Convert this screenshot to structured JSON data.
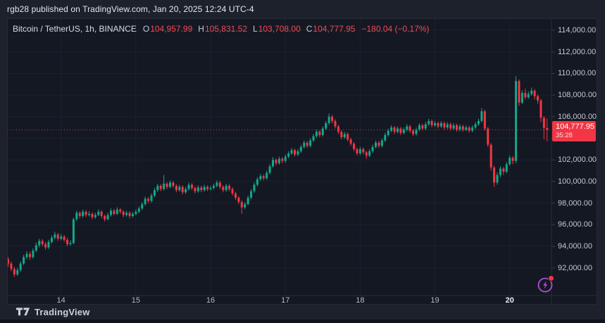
{
  "header": {
    "text": "rgb28 published on TradingView.com, Jan 20, 2025 12:24 UTC-4"
  },
  "legend": {
    "symbol": "Bitcoin / TetherUS, 1h, BINANCE",
    "ohlc": [
      {
        "label": "O",
        "value": "104,957.99"
      },
      {
        "label": "H",
        "value": "105,831.52"
      },
      {
        "label": "L",
        "value": "103,708.00"
      },
      {
        "label": "C",
        "value": "104,777.95"
      }
    ],
    "change": "−180.04 (−0.17%)"
  },
  "price_badge": {
    "price": "104,777.95",
    "countdown": "35:28"
  },
  "footer": {
    "brand": "TradingView"
  },
  "chart_data": {
    "type": "candlestick",
    "title": "Bitcoin / TetherUS",
    "exchange": "BINANCE",
    "interval": "1h",
    "current_price": 104777.95,
    "colors": {
      "up": "#12a88a",
      "down": "#f23645",
      "grid": "#21263322",
      "grid_line": "#232836",
      "axis_text": "#c3c7d1",
      "price_line": "#f23645",
      "badge_bg": "#f23645",
      "separator": "#262b37",
      "panel_bg": "#141823",
      "outer_bg": "#1d212c",
      "lightning": "#b14ed6"
    },
    "y_axis": {
      "side": "right",
      "range": [
        90500,
        114800
      ],
      "ticks": [
        {
          "value": 114000,
          "label": "114,000.00"
        },
        {
          "value": 112000,
          "label": "112,000.00"
        },
        {
          "value": 110000,
          "label": "110,000.00"
        },
        {
          "value": 108000,
          "label": "108,000.00"
        },
        {
          "value": 106000,
          "label": "106,000.00"
        },
        {
          "value": 104000,
          "label": "104,000.00",
          "hidden": true
        },
        {
          "value": 102000,
          "label": "102,000.00"
        },
        {
          "value": 100000,
          "label": "100,000.00"
        },
        {
          "value": 98000,
          "label": "98,000.00"
        },
        {
          "value": 96000,
          "label": "96,000.00"
        },
        {
          "value": 94000,
          "label": "94,000.00"
        },
        {
          "value": 92000,
          "label": "92,000.00"
        }
      ]
    },
    "x_axis": {
      "unit": "day of January 2025",
      "ticks": [
        {
          "label": "14",
          "candle": 17,
          "current": false
        },
        {
          "label": "15",
          "candle": 41,
          "current": false
        },
        {
          "label": "16",
          "candle": 65,
          "current": false
        },
        {
          "label": "17",
          "candle": 89,
          "current": false
        },
        {
          "label": "18",
          "candle": 113,
          "current": false
        },
        {
          "label": "19",
          "candle": 137,
          "current": false
        },
        {
          "label": "20",
          "candle": 161,
          "current": true
        }
      ]
    },
    "candles": [
      [
        92800,
        93000,
        92100,
        92400
      ],
      [
        92400,
        92600,
        91700,
        91900
      ],
      [
        91900,
        92100,
        91150,
        91400
      ],
      [
        91400,
        92000,
        91250,
        91800
      ],
      [
        91800,
        92600,
        91600,
        92400
      ],
      [
        92400,
        93200,
        92250,
        93000
      ],
      [
        93000,
        93550,
        92800,
        93300
      ],
      [
        93300,
        93500,
        92750,
        93000
      ],
      [
        93000,
        93800,
        92850,
        93600
      ],
      [
        93600,
        94350,
        93450,
        94100
      ],
      [
        94100,
        94700,
        93900,
        94500
      ],
      [
        94500,
        94650,
        94000,
        94200
      ],
      [
        94200,
        94400,
        93700,
        93900
      ],
      [
        93900,
        94600,
        93750,
        94400
      ],
      [
        94400,
        95000,
        94250,
        94800
      ],
      [
        94800,
        95350,
        94650,
        95100
      ],
      [
        95100,
        95250,
        94500,
        94700
      ],
      [
        94700,
        95150,
        94550,
        94900
      ],
      [
        94900,
        95050,
        94400,
        94600
      ],
      [
        94600,
        94800,
        94000,
        94200
      ],
      [
        94200,
        94550,
        94050,
        94300
      ],
      [
        94300,
        96650,
        94200,
        96500
      ],
      [
        96500,
        97300,
        96350,
        97100
      ],
      [
        97100,
        97250,
        96600,
        96800
      ],
      [
        96800,
        97400,
        96650,
        97200
      ],
      [
        97200,
        97350,
        96700,
        96900
      ],
      [
        96900,
        97250,
        96750,
        97000
      ],
      [
        97000,
        97150,
        96500,
        96700
      ],
      [
        96700,
        97100,
        96550,
        96900
      ],
      [
        96900,
        97400,
        96800,
        97200
      ],
      [
        97200,
        97350,
        96600,
        96800
      ],
      [
        96800,
        96950,
        96300,
        96500
      ],
      [
        96500,
        97100,
        96400,
        96900
      ],
      [
        96900,
        97500,
        96750,
        97300
      ],
      [
        97300,
        97450,
        96850,
        97000
      ],
      [
        97000,
        97600,
        96900,
        97400
      ],
      [
        97400,
        97550,
        97000,
        97200
      ],
      [
        97200,
        97350,
        96700,
        96900
      ],
      [
        96900,
        97300,
        96750,
        97100
      ],
      [
        97100,
        97250,
        96600,
        96800
      ],
      [
        96800,
        97200,
        96650,
        97000
      ],
      [
        97000,
        97400,
        96850,
        97200
      ],
      [
        97200,
        97700,
        97050,
        97500
      ],
      [
        97500,
        98100,
        97350,
        97900
      ],
      [
        97900,
        98600,
        97750,
        98400
      ],
      [
        98400,
        98550,
        98000,
        98200
      ],
      [
        98200,
        98900,
        98050,
        98700
      ],
      [
        98700,
        99400,
        98550,
        99200
      ],
      [
        99200,
        99800,
        99050,
        99600
      ],
      [
        99600,
        99750,
        99100,
        99300
      ],
      [
        99300,
        100600,
        99150,
        99800
      ],
      [
        99800,
        99950,
        99300,
        99500
      ],
      [
        99500,
        100100,
        99350,
        99900
      ],
      [
        99900,
        100050,
        99400,
        99600
      ],
      [
        99600,
        99750,
        99000,
        99200
      ],
      [
        99200,
        99700,
        99050,
        99500
      ],
      [
        99500,
        99650,
        98800,
        99000
      ],
      [
        99000,
        99500,
        98850,
        99300
      ],
      [
        99300,
        99900,
        99150,
        99700
      ],
      [
        99700,
        99850,
        99200,
        99400
      ],
      [
        99400,
        99550,
        98900,
        99100
      ],
      [
        99100,
        99650,
        98950,
        99450
      ],
      [
        99450,
        99600,
        99000,
        99200
      ],
      [
        99200,
        99700,
        99050,
        99500
      ],
      [
        99500,
        99650,
        99100,
        99300
      ],
      [
        99300,
        99600,
        99150,
        99400
      ],
      [
        99400,
        99800,
        99250,
        99600
      ],
      [
        99600,
        100100,
        99450,
        99900
      ],
      [
        99900,
        100050,
        99300,
        99500
      ],
      [
        99500,
        99650,
        99000,
        99200
      ],
      [
        99200,
        99800,
        99050,
        99600
      ],
      [
        99600,
        99750,
        99100,
        99300
      ],
      [
        99300,
        99450,
        98700,
        98900
      ],
      [
        98900,
        99050,
        98300,
        98500
      ],
      [
        98500,
        98650,
        97900,
        98100
      ],
      [
        98100,
        98250,
        97000,
        97600
      ],
      [
        97600,
        98100,
        97450,
        97900
      ],
      [
        97900,
        98700,
        97800,
        98500
      ],
      [
        98500,
        99300,
        98350,
        99100
      ],
      [
        99100,
        99900,
        98950,
        99700
      ],
      [
        99700,
        100400,
        99550,
        100200
      ],
      [
        100200,
        100700,
        100050,
        100500
      ],
      [
        100500,
        100650,
        100100,
        100300
      ],
      [
        100300,
        101000,
        100150,
        100800
      ],
      [
        100800,
        101600,
        100650,
        101400
      ],
      [
        101400,
        102250,
        101300,
        102000
      ],
      [
        102000,
        102150,
        101500,
        101700
      ],
      [
        101700,
        102300,
        101550,
        102100
      ],
      [
        102100,
        102250,
        101700,
        101900
      ],
      [
        101900,
        102500,
        101750,
        102300
      ],
      [
        102300,
        102800,
        102150,
        102600
      ],
      [
        102600,
        103100,
        102450,
        102900
      ],
      [
        102900,
        103050,
        102300,
        102500
      ],
      [
        102500,
        103000,
        102350,
        102800
      ],
      [
        102800,
        103400,
        102650,
        103200
      ],
      [
        103200,
        103800,
        103050,
        103600
      ],
      [
        103600,
        103750,
        103100,
        103300
      ],
      [
        103300,
        104000,
        103150,
        103800
      ],
      [
        103800,
        104400,
        103650,
        104200
      ],
      [
        104200,
        104800,
        104050,
        104600
      ],
      [
        104600,
        104750,
        104100,
        104300
      ],
      [
        104300,
        105100,
        104150,
        104900
      ],
      [
        104900,
        105600,
        104750,
        105400
      ],
      [
        105400,
        106300,
        105250,
        106000
      ],
      [
        106000,
        106150,
        105400,
        105600
      ],
      [
        105600,
        105750,
        104900,
        105100
      ],
      [
        105100,
        105250,
        104400,
        104600
      ],
      [
        104600,
        104750,
        103900,
        104100
      ],
      [
        104100,
        104600,
        103950,
        104400
      ],
      [
        104400,
        104550,
        103700,
        103900
      ],
      [
        103900,
        104050,
        103300,
        103500
      ],
      [
        103500,
        103650,
        102800,
        103000
      ],
      [
        103000,
        103150,
        102400,
        102600
      ],
      [
        102600,
        103200,
        102450,
        103000
      ],
      [
        103000,
        103150,
        102500,
        102700
      ],
      [
        102700,
        102850,
        102100,
        102400
      ],
      [
        102400,
        103000,
        102250,
        102800
      ],
      [
        102800,
        103400,
        102650,
        103200
      ],
      [
        103200,
        103800,
        103050,
        103600
      ],
      [
        103600,
        103750,
        103100,
        103300
      ],
      [
        103300,
        104000,
        103150,
        103800
      ],
      [
        103800,
        104500,
        103650,
        104300
      ],
      [
        104300,
        104900,
        104150,
        104700
      ],
      [
        104700,
        105200,
        104550,
        105000
      ],
      [
        105000,
        105150,
        104400,
        104600
      ],
      [
        104600,
        105100,
        104450,
        104900
      ],
      [
        104900,
        105050,
        104300,
        104500
      ],
      [
        104500,
        105000,
        104350,
        104800
      ],
      [
        104800,
        105300,
        104650,
        105100
      ],
      [
        105100,
        105250,
        104500,
        104700
      ],
      [
        104700,
        104850,
        104200,
        104400
      ],
      [
        104400,
        105000,
        104250,
        104800
      ],
      [
        104800,
        105400,
        104650,
        105200
      ],
      [
        105200,
        105350,
        104700,
        104900
      ],
      [
        104900,
        105500,
        104750,
        105300
      ],
      [
        105300,
        105800,
        105150,
        105600
      ],
      [
        105600,
        105750,
        105000,
        105200
      ],
      [
        105200,
        105600,
        105050,
        105400
      ],
      [
        105400,
        105550,
        104900,
        105100
      ],
      [
        105100,
        105600,
        104950,
        105400
      ],
      [
        105400,
        105550,
        104800,
        105000
      ],
      [
        105000,
        105500,
        104850,
        105300
      ],
      [
        105300,
        105450,
        104700,
        104900
      ],
      [
        104900,
        105400,
        104750,
        105200
      ],
      [
        105200,
        105350,
        104600,
        104800
      ],
      [
        104800,
        105300,
        104650,
        105100
      ],
      [
        105100,
        105250,
        104600,
        104800
      ],
      [
        104800,
        105200,
        104650,
        105000
      ],
      [
        105000,
        105150,
        104500,
        104700
      ],
      [
        104700,
        105200,
        104550,
        105000
      ],
      [
        105000,
        105500,
        104850,
        105300
      ],
      [
        105300,
        105800,
        105150,
        105600
      ],
      [
        105600,
        106800,
        105450,
        106500
      ],
      [
        106500,
        106650,
        104700,
        104900
      ],
      [
        104900,
        105050,
        103200,
        103400
      ],
      [
        103400,
        103550,
        101000,
        101300
      ],
      [
        101300,
        101450,
        99500,
        99900
      ],
      [
        99900,
        100850,
        99700,
        100600
      ],
      [
        100600,
        101400,
        100400,
        101200
      ],
      [
        101200,
        101350,
        100600,
        100900
      ],
      [
        100900,
        101800,
        100750,
        101600
      ],
      [
        101600,
        102400,
        101450,
        102200
      ],
      [
        102200,
        102350,
        101600,
        101900
      ],
      [
        101900,
        109750,
        101700,
        109300
      ],
      [
        109300,
        109450,
        107000,
        107300
      ],
      [
        107300,
        108450,
        107150,
        108200
      ],
      [
        108200,
        108600,
        107600,
        107800
      ],
      [
        107800,
        108350,
        107650,
        108100
      ],
      [
        108100,
        108700,
        107950,
        108400
      ],
      [
        108400,
        108550,
        107600,
        107900
      ],
      [
        107900,
        108050,
        107200,
        107500
      ],
      [
        107500,
        107650,
        105500,
        105900
      ],
      [
        105900,
        106050,
        103900,
        104958
      ],
      [
        104957.99,
        105831.52,
        103708.0,
        104777.95
      ]
    ]
  }
}
